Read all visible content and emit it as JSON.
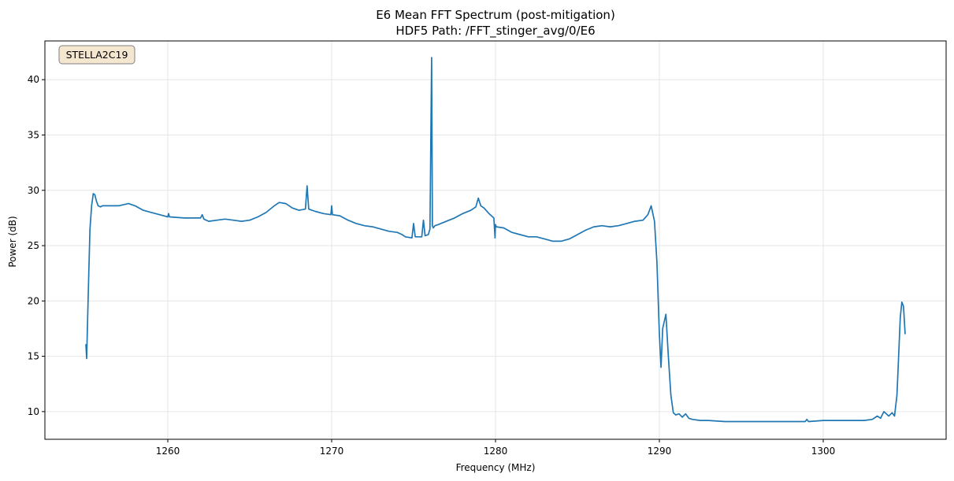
{
  "chart_data": {
    "type": "line",
    "title": "E6 Mean FFT Spectrum (post-mitigation)",
    "subtitle": "HDF5 Path: /FFT_stinger_avg/0/E6",
    "xlabel": "Frequency (MHz)",
    "ylabel": "Power (dB)",
    "xlim": [
      1252.5,
      1307.5
    ],
    "ylim": [
      7.5,
      43.5
    ],
    "xticks": [
      1260,
      1270,
      1280,
      1290,
      1300
    ],
    "yticks": [
      10,
      15,
      20,
      25,
      30,
      35,
      40
    ],
    "grid": true,
    "line_color": "#1f77b4",
    "annotation": {
      "text": "STELLA2C19",
      "position": "top-left",
      "face_color": "#f5e6cf",
      "edge_color": "#7f7f7f"
    },
    "series": [
      {
        "x": [
          1255.0,
          1255.05,
          1255.1,
          1255.18,
          1255.25,
          1255.35,
          1255.45,
          1255.55,
          1255.65,
          1255.75,
          1255.9,
          1256.0,
          1256.3,
          1257.0,
          1257.6,
          1258.0,
          1258.5,
          1259.0,
          1259.5,
          1260.0,
          1260.05,
          1260.1,
          1261.0,
          1261.5,
          1262.0,
          1262.1,
          1262.2,
          1262.5,
          1263.0,
          1263.5,
          1264.0,
          1264.5,
          1265.0,
          1265.5,
          1266.0,
          1266.5,
          1266.8,
          1267.2,
          1267.6,
          1268.0,
          1268.4,
          1268.5,
          1268.6,
          1268.8,
          1269.0,
          1269.5,
          1269.95,
          1270.0,
          1270.05,
          1270.5,
          1271.0,
          1271.5,
          1272.0,
          1272.5,
          1273.0,
          1273.5,
          1274.0,
          1274.3,
          1274.5,
          1274.9,
          1275.0,
          1275.1,
          1275.5,
          1275.6,
          1275.7,
          1275.9,
          1276.0,
          1276.1,
          1276.15,
          1276.2,
          1276.3,
          1276.5,
          1277.0,
          1277.5,
          1278.0,
          1278.5,
          1278.8,
          1278.95,
          1279.1,
          1279.3,
          1279.6,
          1279.9,
          1279.97,
          1280.0,
          1280.05,
          1280.5,
          1281.0,
          1281.5,
          1282.0,
          1282.5,
          1283.0,
          1283.5,
          1284.0,
          1284.5,
          1285.0,
          1285.5,
          1286.0,
          1286.5,
          1287.0,
          1287.5,
          1288.0,
          1288.5,
          1289.0,
          1289.3,
          1289.5,
          1289.7,
          1289.85,
          1290.0,
          1290.1,
          1290.2,
          1290.4,
          1290.55,
          1290.7,
          1290.85,
          1291.0,
          1291.2,
          1291.4,
          1291.6,
          1291.8,
          1292.0,
          1292.5,
          1293.0,
          1294.0,
          1295.0,
          1296.0,
          1297.0,
          1298.0,
          1298.9,
          1299.0,
          1299.1,
          1300.0,
          1301.0,
          1302.0,
          1302.5,
          1303.0,
          1303.3,
          1303.5,
          1303.7,
          1304.0,
          1304.2,
          1304.35,
          1304.5,
          1304.6,
          1304.7,
          1304.8,
          1304.9,
          1305.0
        ],
        "y": [
          16.1,
          14.8,
          18.0,
          22.5,
          26.5,
          28.6,
          29.7,
          29.6,
          29.0,
          28.6,
          28.5,
          28.6,
          28.6,
          28.6,
          28.8,
          28.6,
          28.2,
          28.0,
          27.8,
          27.6,
          27.9,
          27.6,
          27.5,
          27.5,
          27.5,
          27.8,
          27.4,
          27.2,
          27.3,
          27.4,
          27.3,
          27.2,
          27.3,
          27.6,
          28.0,
          28.6,
          28.9,
          28.8,
          28.4,
          28.2,
          28.3,
          30.4,
          28.3,
          28.2,
          28.1,
          27.9,
          27.8,
          28.6,
          27.8,
          27.7,
          27.3,
          27.0,
          26.8,
          26.7,
          26.5,
          26.3,
          26.2,
          26.0,
          25.8,
          25.7,
          27.0,
          25.8,
          25.8,
          27.3,
          25.9,
          26.0,
          26.5,
          42.0,
          26.8,
          26.6,
          26.8,
          26.9,
          27.2,
          27.5,
          27.9,
          28.2,
          28.5,
          29.3,
          28.6,
          28.4,
          27.9,
          27.5,
          25.7,
          26.9,
          26.7,
          26.6,
          26.2,
          26.0,
          25.8,
          25.8,
          25.6,
          25.4,
          25.4,
          25.6,
          26.0,
          26.4,
          26.7,
          26.8,
          26.7,
          26.8,
          27.0,
          27.2,
          27.3,
          27.8,
          28.6,
          27.2,
          23.5,
          17.0,
          14.0,
          17.5,
          18.8,
          15.0,
          11.5,
          9.9,
          9.7,
          9.8,
          9.5,
          9.8,
          9.4,
          9.3,
          9.2,
          9.2,
          9.1,
          9.1,
          9.1,
          9.1,
          9.1,
          9.1,
          9.3,
          9.1,
          9.2,
          9.2,
          9.2,
          9.2,
          9.3,
          9.6,
          9.4,
          10.0,
          9.6,
          9.9,
          9.6,
          11.5,
          15.0,
          18.5,
          19.9,
          19.5,
          17.0
        ]
      }
    ]
  }
}
